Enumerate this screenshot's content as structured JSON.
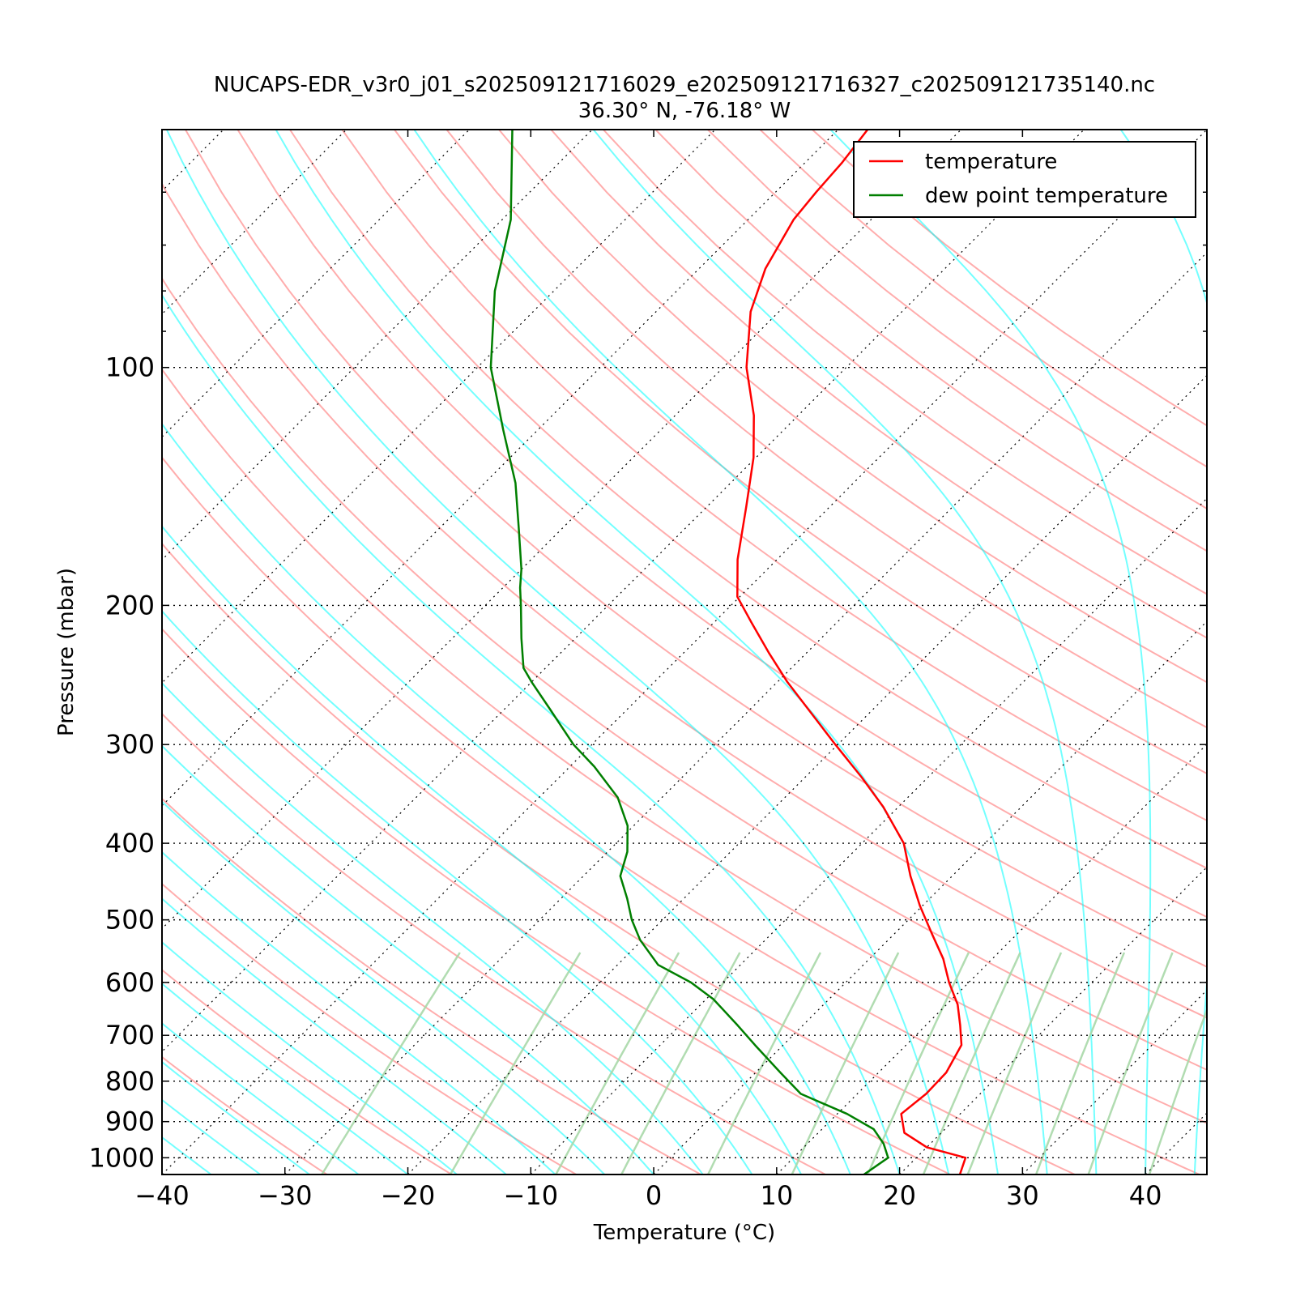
{
  "chart_data": {
    "type": "line",
    "title": "NUCAPS-EDR_v3r0_j01_s202509121716029_e202509121716327_c202509121735140.nc",
    "subtitle": "36.30° N, -76.18° W",
    "xlabel": "Temperature (°C)",
    "ylabel": "Pressure (mbar)",
    "xlim": [
      -40,
      45
    ],
    "ylim": [
      1050,
      50
    ],
    "y_scale": "log",
    "skew": true,
    "x_ticks": [
      -40,
      -30,
      -20,
      -10,
      0,
      10,
      20,
      30,
      40
    ],
    "x_tick_labels": [
      "−40",
      "−30",
      "−20",
      "−10",
      "0",
      "10",
      "20",
      "30",
      "40"
    ],
    "y_ticks": [
      100,
      200,
      300,
      400,
      500,
      600,
      700,
      800,
      900,
      1000
    ],
    "y_tick_labels": [
      "100",
      "200",
      "300",
      "400",
      "500",
      "600",
      "700",
      "800",
      "900",
      "1000"
    ],
    "legend_position": "top-right",
    "series": [
      {
        "name": "temperature",
        "color": "#ff0000",
        "points": [
          [
            1050,
            24.9
          ],
          [
            1000,
            24.0
          ],
          [
            970,
            20.0
          ],
          [
            930,
            17.0
          ],
          [
            880,
            15.2
          ],
          [
            830,
            15.6
          ],
          [
            780,
            15.5
          ],
          [
            720,
            14.5
          ],
          [
            680,
            12.8
          ],
          [
            640,
            10.9
          ],
          [
            600,
            8.4
          ],
          [
            560,
            6.0
          ],
          [
            520,
            3.0
          ],
          [
            480,
            -0.2
          ],
          [
            440,
            -3.4
          ],
          [
            400,
            -6.6
          ],
          [
            360,
            -11.2
          ],
          [
            330,
            -15.4
          ],
          [
            300,
            -20.2
          ],
          [
            270,
            -25.4
          ],
          [
            250,
            -29.2
          ],
          [
            230,
            -33.0
          ],
          [
            210,
            -37.0
          ],
          [
            195,
            -40.2
          ],
          [
            175,
            -43.2
          ],
          [
            150,
            -46.8
          ],
          [
            130,
            -50.2
          ],
          [
            115,
            -53.6
          ],
          [
            100,
            -58.1
          ],
          [
            85,
            -62.3
          ],
          [
            75,
            -64.6
          ],
          [
            65,
            -66.3
          ],
          [
            60,
            -66.7
          ],
          [
            55,
            -67.0
          ],
          [
            50,
            -67.6
          ]
        ]
      },
      {
        "name": "dew point temperature",
        "color": "#007f00",
        "points": [
          [
            1050,
            17.1
          ],
          [
            1000,
            17.7
          ],
          [
            960,
            16.2
          ],
          [
            920,
            14.2
          ],
          [
            880,
            10.8
          ],
          [
            830,
            5.4
          ],
          [
            780,
            2.0
          ],
          [
            720,
            -2.3
          ],
          [
            680,
            -5.3
          ],
          [
            630,
            -9.4
          ],
          [
            600,
            -12.6
          ],
          [
            570,
            -16.7
          ],
          [
            530,
            -20.2
          ],
          [
            500,
            -22.5
          ],
          [
            470,
            -24.6
          ],
          [
            440,
            -27.0
          ],
          [
            410,
            -28.4
          ],
          [
            380,
            -30.5
          ],
          [
            350,
            -33.6
          ],
          [
            320,
            -38.0
          ],
          [
            300,
            -41.5
          ],
          [
            270,
            -46.4
          ],
          [
            250,
            -50.0
          ],
          [
            240,
            -51.8
          ],
          [
            220,
            -54.4
          ],
          [
            200,
            -57.1
          ],
          [
            190,
            -58.6
          ],
          [
            180,
            -60.0
          ],
          [
            160,
            -63.5
          ],
          [
            140,
            -67.5
          ],
          [
            120,
            -72.8
          ],
          [
            100,
            -78.9
          ],
          [
            80,
            -84.8
          ],
          [
            65,
            -89.3
          ],
          [
            50,
            -96.5
          ]
        ]
      }
    ]
  }
}
